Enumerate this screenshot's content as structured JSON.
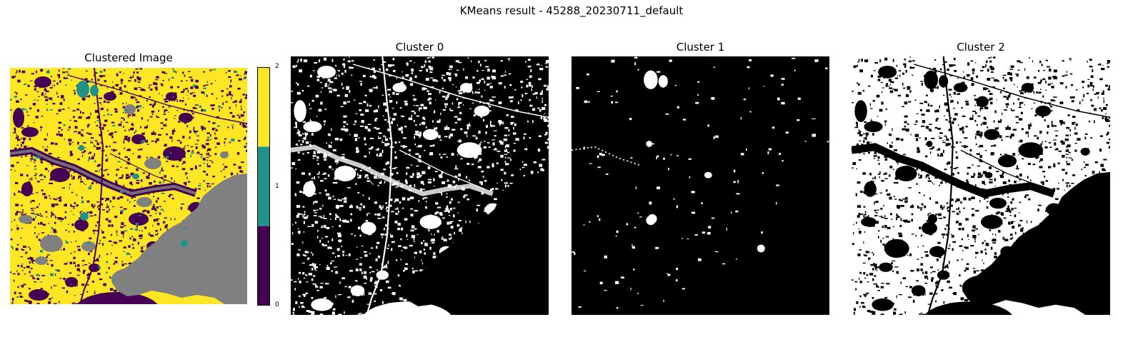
{
  "figure": {
    "suptitle": "KMeans result - 45288_20230711_default"
  },
  "colors": {
    "cluster_0": "#440154",
    "cluster_1": "#21918c",
    "cluster_2": "#fde725",
    "nodata": "#808080",
    "mask_on": "#ffffff",
    "mask_off": "#000000"
  },
  "chart_data": [
    {
      "type": "heatmap",
      "title": "Clustered Image",
      "colormap": "viridis",
      "axes_visible": false,
      "colorbar": {
        "ticks": [
          "0",
          "1",
          "2"
        ],
        "range": [
          0,
          2
        ],
        "levels": 3
      }
    },
    {
      "type": "heatmap",
      "title": "Cluster 0",
      "colormap": "binary",
      "axes_visible": false
    },
    {
      "type": "heatmap",
      "title": "Cluster 1",
      "colormap": "binary",
      "axes_visible": false
    },
    {
      "type": "heatmap",
      "title": "Cluster 2",
      "colormap": "binary",
      "axes_visible": false
    }
  ]
}
